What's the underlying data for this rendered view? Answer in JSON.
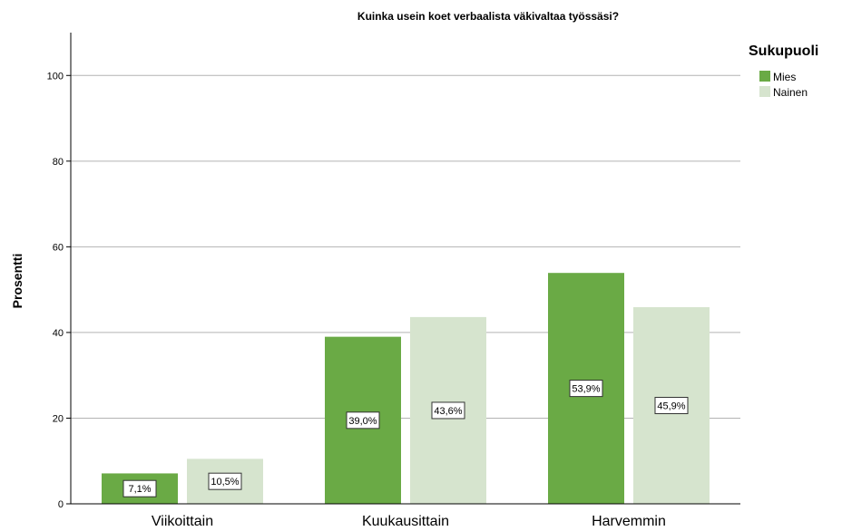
{
  "chart_data": {
    "type": "bar",
    "title": "Kuinka usein koet verbaalista väkivaltaa työssäsi?",
    "xlabel": "",
    "ylabel": "Prosentti",
    "ylim": [
      0,
      110
    ],
    "yticks": [
      0,
      20,
      40,
      60,
      80,
      100
    ],
    "grid": true,
    "categories": [
      "Viikoittain",
      "Kuukausittain",
      "Harvemmin"
    ],
    "legend": {
      "title": "Sukupuoli",
      "placement": "top-right"
    },
    "series": [
      {
        "name": "Mies",
        "color": "#6aaa45",
        "values": [
          7.1,
          39.0,
          53.9
        ],
        "labels": [
          "7,1%",
          "39,0%",
          "53,9%"
        ]
      },
      {
        "name": "Nainen",
        "color": "#d6e4ce",
        "values": [
          10.5,
          43.6,
          45.9
        ],
        "labels": [
          "10,5%",
          "43,6%",
          "45,9%"
        ]
      }
    ]
  }
}
